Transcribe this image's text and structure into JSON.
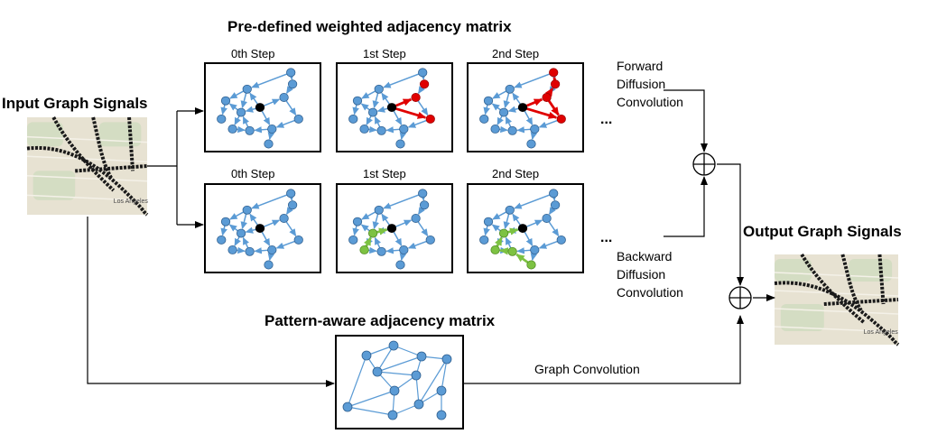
{
  "titles": {
    "predefined": "Pre-defined weighted adjacency matrix",
    "input": "Input Graph Signals",
    "output": "Output Graph Signals",
    "pattern": "Pattern-aware adjacency matrix"
  },
  "steps": [
    "0th Step",
    "1st Step",
    "2nd Step"
  ],
  "forward": [
    "Forward",
    "Diffusion",
    "Convolution"
  ],
  "backward": [
    "Backward",
    "Diffusion",
    "Convolution"
  ],
  "graph_conv": "Graph Convolution",
  "ellipsis": "...",
  "plus_symbol": "⊕",
  "map_labels": {
    "left_city": "Los Angeles",
    "right_city": "Los Angeles"
  },
  "colors": {
    "node": "#5b9bd5",
    "node_stroke": "#2f5f8f",
    "edge": "#5b9bd5",
    "center": "#000000",
    "forward_highlight": "#e00000",
    "backward_highlight": "#7dc242",
    "map_bg": "#e7e2d2",
    "road": "#1a1a1a"
  }
}
